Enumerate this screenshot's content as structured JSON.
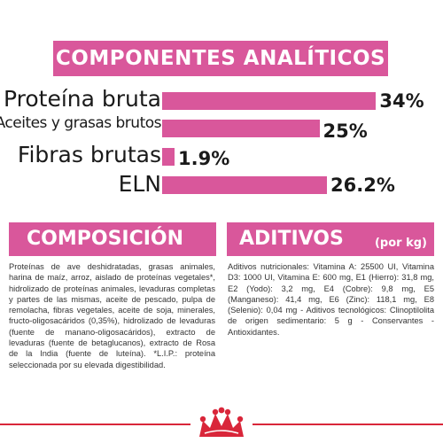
{
  "analytic": {
    "title": "COMPONENTES ANALÍTICOS",
    "rows": [
      {
        "label": "Proteína bruta",
        "value": 34,
        "display": "34%"
      },
      {
        "label": "Aceites y grasas brutos",
        "value": 25,
        "display": "25%"
      },
      {
        "label": "Fibras brutas",
        "value": 1.9,
        "display": "1.9%"
      },
      {
        "label": "ELN",
        "value": 26.2,
        "display": "26.2%"
      }
    ]
  },
  "composicion": {
    "title": "COMPOSICIÓN",
    "text": "Proteínas de ave deshidratadas, grasas animales, harina de maíz, arroz, aislado de proteínas vegetales*, hidrolizado de proteínas animales, levaduras completas y partes de las mismas, aceite de pescado, pulpa de remolacha, fibras vegetales, aceite de soja, minerales, fructo-oligosacáridos (0,35%), hidrolizado de levaduras (fuente de manano-oligosacáridos), extracto de levaduras (fuente de betaglucanos), extracto de Rosa de la India (fuente de luteína). *L.I.P.: proteína seleccionada por su elevada digestibilidad."
  },
  "aditivos": {
    "title": "ADITIVOS",
    "unit": "(por kg)",
    "text": "Aditivos nutricionales: Vitamina A: 25500 UI, Vitamina D3: 1000 UI, Vitamina E: 600 mg, E1 (Hierro): 31,8 mg, E2 (Yodo): 3,2 mg, E4 (Cobre): 9,8 mg, E5 (Manganeso): 41,4 mg, E6 (Zinc): 118,1 mg, E8 (Selenio): 0,04 mg - Aditivos tecnológicos: Clinoptilolita de origen sedimentario: 5 g - Conservantes - Antioxidantes."
  },
  "colors": {
    "accent": "#d9579b",
    "brand_red": "#d9263a",
    "text": "#1a1a1a"
  },
  "logo": {
    "icon": "royal-canin-crown-icon"
  }
}
